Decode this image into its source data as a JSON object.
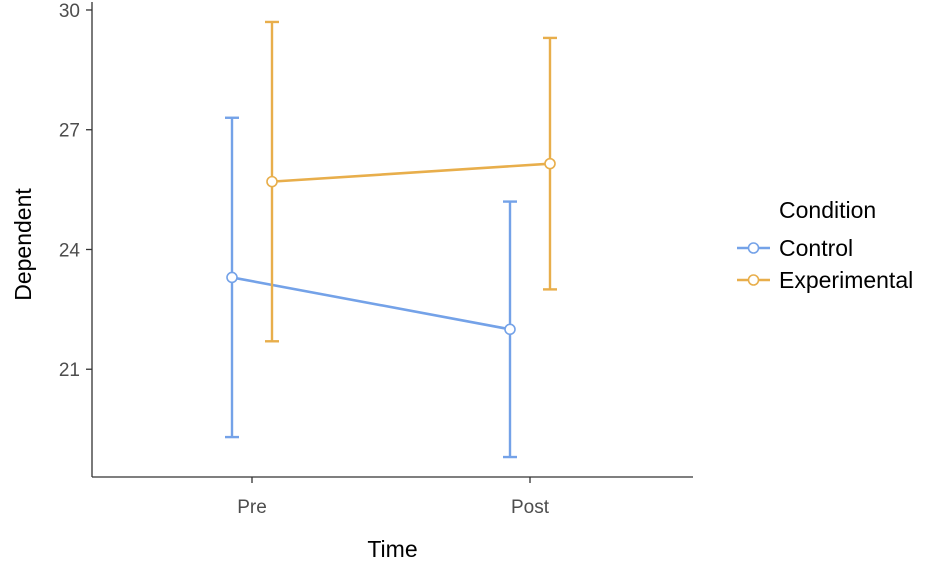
{
  "chart_data": {
    "type": "line",
    "title": "",
    "xlabel": "Time",
    "ylabel": "Dependent",
    "categories": [
      "Pre",
      "Post"
    ],
    "ylim": [
      18.3,
      30.2
    ],
    "yticks": [
      21,
      24,
      27,
      30
    ],
    "grid": false,
    "legend": {
      "title": "Condition",
      "position": "right"
    },
    "series": [
      {
        "name": "Control",
        "color": "#74a2e8",
        "values": [
          23.3,
          22.0
        ],
        "error_low": [
          19.3,
          18.8
        ],
        "error_high": [
          27.3,
          25.2
        ]
      },
      {
        "name": "Experimental",
        "color": "#e8ae4b",
        "values": [
          25.7,
          26.15
        ],
        "error_low": [
          21.7,
          23.0
        ],
        "error_high": [
          29.7,
          29.3
        ]
      }
    ]
  }
}
